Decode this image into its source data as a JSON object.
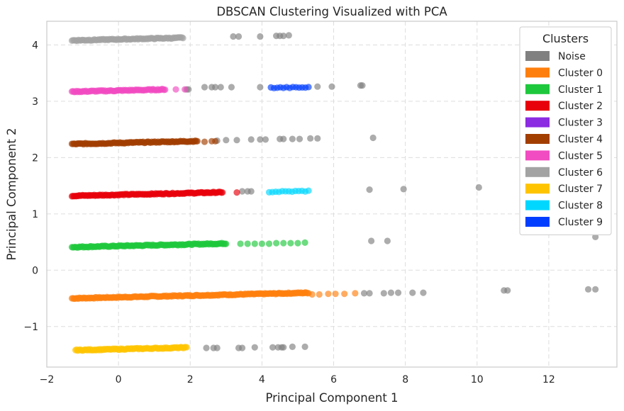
{
  "chart_data": {
    "type": "scatter",
    "title": "DBSCAN Clustering Visualized with PCA",
    "xlabel": "Principal Component 1",
    "ylabel": "Principal Component 2",
    "xlim": [
      -2.0,
      13.9
    ],
    "ylim": [
      -1.72,
      4.42
    ],
    "xticks": [
      -2,
      0,
      2,
      4,
      6,
      8,
      10,
      12
    ],
    "xtick_labels": [
      "−2",
      "0",
      "2",
      "4",
      "6",
      "8",
      "10",
      "12"
    ],
    "yticks": [
      -1,
      0,
      1,
      2,
      3,
      4
    ],
    "ytick_labels": [
      "−1",
      "0",
      "1",
      "2",
      "3",
      "4"
    ],
    "grid": true,
    "legend": {
      "title": "Clusters",
      "placement": "top-right"
    },
    "series": [
      {
        "name": "Noise",
        "color": "#808080",
        "points": [
          [
            3.2,
            4.15
          ],
          [
            3.35,
            4.15
          ],
          [
            3.95,
            4.15
          ],
          [
            4.4,
            4.16
          ],
          [
            4.5,
            4.16
          ],
          [
            4.6,
            4.16
          ],
          [
            4.75,
            4.17
          ],
          [
            2.4,
            3.25
          ],
          [
            2.6,
            3.25
          ],
          [
            2.7,
            3.25
          ],
          [
            2.85,
            3.25
          ],
          [
            3.15,
            3.25
          ],
          [
            3.95,
            3.25
          ],
          [
            5.55,
            3.26
          ],
          [
            5.95,
            3.26
          ],
          [
            6.75,
            3.28
          ],
          [
            6.8,
            3.28
          ],
          [
            1.9,
            3.21
          ],
          [
            1.95,
            3.21
          ],
          [
            2.75,
            2.3
          ],
          [
            3.0,
            2.31
          ],
          [
            3.3,
            2.31
          ],
          [
            3.7,
            2.32
          ],
          [
            3.95,
            2.32
          ],
          [
            4.1,
            2.32
          ],
          [
            4.5,
            2.33
          ],
          [
            4.6,
            2.33
          ],
          [
            4.85,
            2.33
          ],
          [
            5.05,
            2.33
          ],
          [
            5.35,
            2.34
          ],
          [
            5.55,
            2.34
          ],
          [
            7.1,
            2.35
          ],
          [
            3.45,
            1.4
          ],
          [
            3.6,
            1.4
          ],
          [
            3.7,
            1.4
          ],
          [
            7.0,
            1.43
          ],
          [
            7.95,
            1.44
          ],
          [
            10.05,
            1.47
          ],
          [
            7.05,
            0.52
          ],
          [
            7.5,
            0.52
          ],
          [
            13.3,
            0.59
          ],
          [
            6.85,
            -0.41
          ],
          [
            7.0,
            -0.41
          ],
          [
            7.4,
            -0.41
          ],
          [
            7.6,
            -0.4
          ],
          [
            7.8,
            -0.4
          ],
          [
            8.2,
            -0.4
          ],
          [
            8.5,
            -0.4
          ],
          [
            10.75,
            -0.36
          ],
          [
            10.85,
            -0.36
          ],
          [
            13.1,
            -0.34
          ],
          [
            13.3,
            -0.34
          ],
          [
            2.45,
            -1.38
          ],
          [
            2.65,
            -1.38
          ],
          [
            2.75,
            -1.38
          ],
          [
            3.35,
            -1.38
          ],
          [
            3.45,
            -1.38
          ],
          [
            3.8,
            -1.37
          ],
          [
            4.3,
            -1.37
          ],
          [
            4.45,
            -1.37
          ],
          [
            4.55,
            -1.37
          ],
          [
            4.6,
            -1.37
          ],
          [
            4.85,
            -1.36
          ],
          [
            5.2,
            -1.36
          ]
        ]
      },
      {
        "name": "Cluster 0",
        "color": "#ff7f0e",
        "band": {
          "y": -0.5,
          "x_start": -1.3,
          "x_end": 5.3,
          "slope": 0.015,
          "density": 34
        },
        "points": [
          [
            5.4,
            -0.43
          ],
          [
            5.6,
            -0.43
          ],
          [
            5.85,
            -0.42
          ],
          [
            6.05,
            -0.42
          ],
          [
            6.3,
            -0.42
          ],
          [
            6.6,
            -0.41
          ]
        ]
      },
      {
        "name": "Cluster 1",
        "color": "#1ec83c",
        "band": {
          "y": 0.41,
          "x_start": -1.3,
          "x_end": 3.0,
          "slope": 0.015,
          "density": 34
        },
        "points": [
          [
            3.4,
            0.47
          ],
          [
            3.6,
            0.47
          ],
          [
            3.8,
            0.47
          ],
          [
            4.0,
            0.47
          ],
          [
            4.2,
            0.47
          ],
          [
            4.4,
            0.48
          ],
          [
            4.6,
            0.48
          ],
          [
            4.8,
            0.48
          ],
          [
            5.0,
            0.48
          ],
          [
            5.2,
            0.49
          ]
        ]
      },
      {
        "name": "Cluster 2",
        "color": "#e8000b",
        "band": {
          "y": 1.32,
          "x_start": -1.3,
          "x_end": 2.9,
          "slope": 0.015,
          "density": 34
        },
        "points": [
          [
            3.3,
            1.38
          ]
        ]
      },
      {
        "name": "Cluster 3",
        "color": "#8b2be2",
        "points": []
      },
      {
        "name": "Cluster 4",
        "color": "#a23e00",
        "band": {
          "y": 2.24,
          "x_start": -1.3,
          "x_end": 2.2,
          "slope": 0.015,
          "density": 34
        },
        "points": [
          [
            2.4,
            2.28
          ],
          [
            2.6,
            2.29
          ],
          [
            2.7,
            2.29
          ]
        ]
      },
      {
        "name": "Cluster 5",
        "color": "#f14cc1",
        "band": {
          "y": 3.17,
          "x_start": -1.3,
          "x_end": 1.3,
          "slope": 0.015,
          "density": 34
        },
        "points": [
          [
            1.6,
            3.21
          ],
          [
            1.85,
            3.21
          ]
        ]
      },
      {
        "name": "Cluster 6",
        "color": "#a3a3a3",
        "band": {
          "y": 4.08,
          "x_start": -1.3,
          "x_end": 1.8,
          "slope": 0.015,
          "density": 34
        },
        "points": []
      },
      {
        "name": "Cluster 7",
        "color": "#ffc400",
        "band": {
          "y": -1.42,
          "x_start": -1.2,
          "x_end": 1.9,
          "slope": 0.015,
          "density": 34
        },
        "points": []
      },
      {
        "name": "Cluster 8",
        "color": "#00d7ff",
        "band": {
          "y": 1.39,
          "x_start": 4.2,
          "x_end": 5.3,
          "slope": 0.015,
          "density": 12
        },
        "points": []
      },
      {
        "name": "Cluster 9",
        "color": "#023eff",
        "band": {
          "y": 3.24,
          "x_start": 4.25,
          "x_end": 5.3,
          "slope": 0.005,
          "density": 12
        },
        "points": []
      }
    ]
  }
}
